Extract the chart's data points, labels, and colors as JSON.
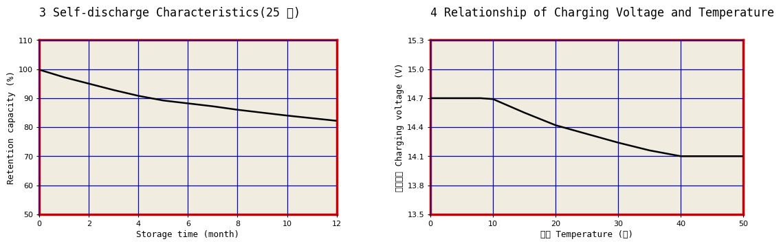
{
  "chart1": {
    "title": "3 Self-discharge Characteristics(25 ℃)",
    "xlabel": "Storage time (month)",
    "ylabel": "Retention capacity (%)",
    "xlim": [
      0,
      12
    ],
    "ylim": [
      50,
      110
    ],
    "xticks": [
      0,
      2,
      4,
      6,
      8,
      10,
      12
    ],
    "yticks": [
      50,
      60,
      70,
      80,
      90,
      100,
      110
    ],
    "curve_x": [
      0,
      0.5,
      1,
      2,
      3,
      4,
      5,
      6,
      7,
      8,
      9,
      10,
      11,
      12
    ],
    "curve_y": [
      99.8,
      98.5,
      97.2,
      95.0,
      92.8,
      90.8,
      89.2,
      88.2,
      87.2,
      86.0,
      85.0,
      84.0,
      83.1,
      82.2
    ]
  },
  "chart2": {
    "title": "4 Relationship of Charging Voltage and Temperature",
    "xlabel": "温度 Temperature (℃)",
    "ylabel": "充电电压 Charging voltage (V)",
    "xlim": [
      0,
      50
    ],
    "ylim": [
      13.5,
      15.3
    ],
    "xticks": [
      0,
      10,
      20,
      30,
      40,
      50
    ],
    "yticks": [
      13.5,
      13.8,
      14.1,
      14.4,
      14.7,
      15.0,
      15.3
    ],
    "curve_x": [
      0,
      8,
      10,
      15,
      20,
      25,
      30,
      35,
      40,
      42,
      50
    ],
    "curve_y": [
      14.7,
      14.7,
      14.69,
      14.55,
      14.42,
      14.33,
      14.24,
      14.16,
      14.1,
      14.1,
      14.1
    ]
  },
  "grid_color": "#0000bb",
  "line_color": "#000000",
  "border_color": "#cc0000",
  "title_font": "DejaVu Sans Mono",
  "title_fontsize": 12,
  "axis_tick_fontsize": 8,
  "axis_label_fontsize": 9,
  "inner_bg": "#f5f0e8",
  "outer_bg": "#ffffff",
  "panel_bg": "#f0ece0"
}
